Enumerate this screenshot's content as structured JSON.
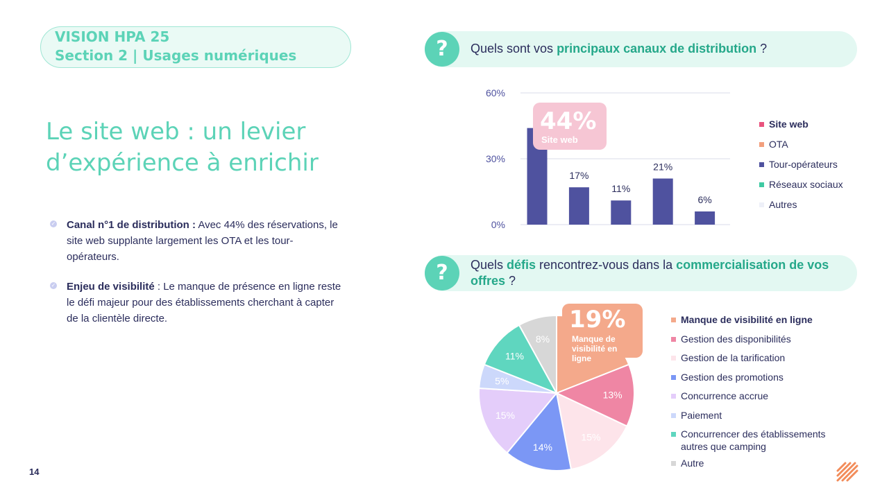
{
  "header": {
    "line1": "VISION HPA 25",
    "line2": "Section 2 | Usages numériques"
  },
  "headline": "Le site web : un levier d’expérience à enrichir",
  "bullets": [
    {
      "bold": "Canal n°1 de distribution :",
      "text": " Avec 44% des réservations, le site web supplante largement les OTA et les tour-opérateurs."
    },
    {
      "bold": "Enjeu de visibilité",
      "text": " : Le manque de présence en ligne reste le défi majeur pour des établissements cherchant à capter de la clientèle directe."
    }
  ],
  "page_number": "14",
  "question1": {
    "icon": "?",
    "pre": "Quels sont vos ",
    "bold": "principaux canaux de distribution",
    "post": " ?"
  },
  "question2": {
    "icon": "?",
    "pre": "Quels ",
    "bold1": "défis",
    "mid": " rencontrez-vous dans la ",
    "bold2": "commercialisation de vos offres",
    "post": " ?"
  },
  "callout1": {
    "value": "44%",
    "label": "Site web"
  },
  "callout2": {
    "value": "19%",
    "label": "Manque de visibilité en ligne"
  },
  "colors": {
    "teal": "#5cd3b7",
    "navy": "#2b2d5c",
    "bar": "#4f529f",
    "pink_legend": "#e9537e",
    "orange_legend": "#f29f7d",
    "teal_legend": "#3fcaa3",
    "pale_legend": "#eef0f8"
  },
  "chart_data": [
    {
      "type": "bar",
      "title": "Quels sont vos principaux canaux de distribution ?",
      "categories": [
        "Site web",
        "OTA",
        "Tour-opérateurs",
        "Réseaux sociaux",
        "Autres"
      ],
      "values": [
        44,
        17,
        11,
        21,
        6
      ],
      "data_labels": [
        "44%",
        "17%",
        "11%",
        "21%",
        "6%"
      ],
      "ylim": [
        0,
        60
      ],
      "yticks": [
        "0%",
        "30%",
        "60%"
      ],
      "legend": [
        "Site web",
        "OTA",
        "Tour-opérateurs",
        "Réseaux sociaux",
        "Autres"
      ],
      "legend_colors": [
        "#e9537e",
        "#f29f7d",
        "#4f529f",
        "#3fcaa3",
        "#eef0f8"
      ],
      "bar_color": "#4f529f",
      "grid": true
    },
    {
      "type": "pie",
      "title": "Quels défis rencontrez-vous dans la commercialisation de vos offres ?",
      "labels": [
        "Manque de visibilité en ligne",
        "Gestion des disponibilités",
        "Gestion de la tarification",
        "Gestion des promotions",
        "Concurrence accrue",
        "Paiement",
        "Concurrencer des établissements autres que camping",
        "Autre"
      ],
      "values": [
        19,
        13,
        15,
        14,
        15,
        5,
        11,
        8
      ],
      "data_labels": [
        "19%",
        "13%",
        "15%",
        "14%",
        "15%",
        "5%",
        "11%",
        "8%"
      ],
      "colors": [
        "#f4a98b",
        "#ef86a4",
        "#fde4ea",
        "#7b97f5",
        "#e4cdfa",
        "#ccd8fb",
        "#5fd6bf",
        "#d7d7d7"
      ],
      "label_colors": [
        "#ffffff",
        "#ffffff",
        "#ffffff",
        "#ffffff",
        "#ffffff",
        "#ffffff",
        "#ffffff",
        "#ffffff"
      ]
    }
  ]
}
